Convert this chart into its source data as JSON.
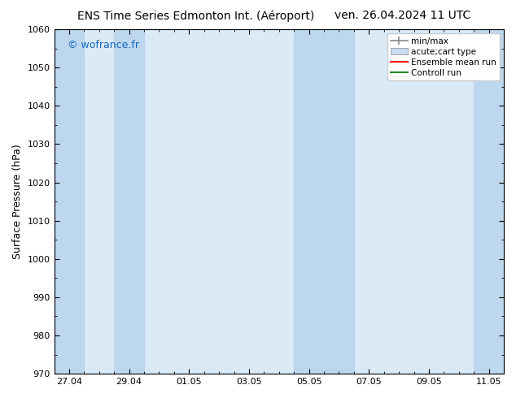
{
  "title_left": "ENS Time Series Edmonton Int. (Aéroport)",
  "title_right": "ven. 26.04.2024 11 UTC",
  "ylabel": "Surface Pressure (hPa)",
  "ylim": [
    970,
    1060
  ],
  "yticks": [
    970,
    980,
    990,
    1000,
    1010,
    1020,
    1030,
    1040,
    1050,
    1060
  ],
  "x_tick_labels": [
    "27.04",
    "29.04",
    "01.05",
    "03.05",
    "05.05",
    "07.05",
    "09.05",
    "11.05"
  ],
  "x_tick_positions": [
    0,
    2,
    4,
    6,
    8,
    10,
    12,
    14
  ],
  "xlim": [
    -0.5,
    14.5
  ],
  "plot_bg_color": "#daeaf7",
  "shaded_bands": [
    {
      "x_start": -0.5,
      "x_end": 0.5,
      "color": "#bdd7ee"
    },
    {
      "x_start": 1.5,
      "x_end": 2.5,
      "color": "#bdd7ee"
    },
    {
      "x_start": 7.5,
      "x_end": 9.5,
      "color": "#bdd7ee"
    },
    {
      "x_start": 13.5,
      "x_end": 14.5,
      "color": "#bdd7ee"
    }
  ],
  "watermark_text": "© wofrance.fr",
  "watermark_color": "#1565c0",
  "bg_color": "#ffffff",
  "legend_items": [
    {
      "label": "min/max",
      "color": "#888888",
      "type": "errorbar"
    },
    {
      "label": "acute;cart type",
      "color": "#c8ddf0",
      "type": "bar"
    },
    {
      "label": "Ensemble mean run",
      "color": "#ff0000",
      "type": "line"
    },
    {
      "label": "Controll run",
      "color": "#228b22",
      "type": "line"
    }
  ],
  "title_fontsize": 10,
  "tick_fontsize": 8,
  "ylabel_fontsize": 9,
  "legend_fontsize": 7.5
}
